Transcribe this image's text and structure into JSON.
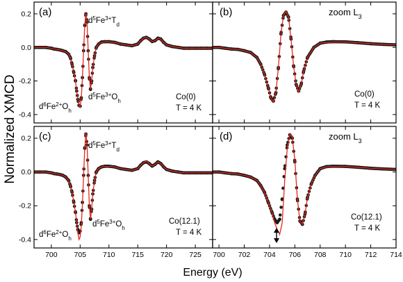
{
  "figure": {
    "ylabel": "Normalized XMCD",
    "xlabel": "Energy (eV)"
  },
  "chart_data": [
    {
      "id": "a",
      "type": "line",
      "panel_label": "(a)",
      "xlim": [
        697,
        728
      ],
      "ylim": [
        -0.45,
        0.27
      ],
      "x_ticks": [
        700,
        705,
        710,
        715,
        720,
        725
      ],
      "y_ticks": [
        -0.4,
        -0.2,
        0.0,
        0.2
      ],
      "y_tick_labels": [
        "-0.4",
        "-0.2",
        "0.0",
        "0.2"
      ],
      "series": [
        {
          "role": "measured",
          "color": "#1a1a1a",
          "x": [
            697,
            698,
            699,
            700,
            700.5,
            701,
            701.5,
            702,
            702.5,
            703,
            703.3,
            703.6,
            703.9,
            704.2,
            704.4,
            704.6,
            704.8,
            705.0,
            705.2,
            705.4,
            705.6,
            705.8,
            706.0,
            706.2,
            706.4,
            706.6,
            706.8,
            707.0,
            707.2,
            707.5,
            707.8,
            708.2,
            708.7,
            709.3,
            710,
            711,
            712,
            713,
            714,
            715,
            715.5,
            716,
            716.5,
            717,
            717.5,
            718,
            718.5,
            719,
            719.5,
            720,
            720.5,
            721,
            722,
            723,
            724,
            725,
            726,
            727,
            728
          ],
          "values": [
            0.0,
            0.0,
            0.0,
            -0.005,
            -0.01,
            -0.012,
            -0.015,
            -0.02,
            -0.025,
            -0.04,
            -0.06,
            -0.1,
            -0.15,
            -0.2,
            -0.26,
            -0.31,
            -0.345,
            -0.35,
            -0.3,
            -0.18,
            -0.02,
            0.13,
            0.2,
            0.15,
            -0.02,
            -0.18,
            -0.25,
            -0.2,
            -0.12,
            -0.05,
            0.0,
            0.02,
            0.032,
            0.034,
            0.034,
            0.03,
            0.02,
            0.015,
            0.01,
            0.02,
            0.04,
            0.055,
            0.06,
            0.05,
            0.035,
            0.04,
            0.055,
            0.05,
            0.03,
            0.015,
            0.01,
            0.005,
            0.0,
            -0.005,
            -0.005,
            -0.005,
            -0.005,
            -0.005,
            -0.005
          ]
        },
        {
          "role": "fit",
          "color": "#e3281c",
          "x": [
            697,
            698,
            699,
            700,
            700.5,
            701,
            701.5,
            702,
            702.5,
            703,
            703.3,
            703.6,
            703.9,
            704.2,
            704.4,
            704.6,
            704.8,
            705.0,
            705.2,
            705.4,
            705.6,
            705.8,
            706.0,
            706.2,
            706.4,
            706.6,
            706.8,
            707.0,
            707.2,
            707.5,
            707.8,
            708.2,
            708.7,
            709.3,
            710,
            711,
            712,
            713,
            714,
            715,
            715.5,
            716,
            716.5,
            717,
            717.5,
            718,
            718.5,
            719,
            719.5,
            720,
            720.5,
            721,
            722,
            723,
            724,
            725,
            726,
            727,
            728
          ],
          "values": [
            0.0,
            0.0,
            0.0,
            -0.005,
            -0.01,
            -0.012,
            -0.015,
            -0.02,
            -0.025,
            -0.04,
            -0.06,
            -0.1,
            -0.15,
            -0.2,
            -0.26,
            -0.31,
            -0.345,
            -0.355,
            -0.3,
            -0.18,
            -0.02,
            0.13,
            0.205,
            0.15,
            -0.02,
            -0.18,
            -0.25,
            -0.2,
            -0.12,
            -0.05,
            0.0,
            0.02,
            0.03,
            0.033,
            0.033,
            0.03,
            0.02,
            0.015,
            0.01,
            0.02,
            0.04,
            0.055,
            0.06,
            0.05,
            0.035,
            0.04,
            0.055,
            0.05,
            0.03,
            0.015,
            0.01,
            0.005,
            0.0,
            -0.005,
            -0.005,
            -0.005,
            -0.005,
            -0.005,
            -0.005
          ]
        }
      ],
      "annotations": [
        "d⁵Fe³⁺T_d",
        "d⁵Fe³⁺O_h",
        "d⁶Fe²⁺O_h",
        "Co(0)",
        "T = 4 K"
      ]
    },
    {
      "id": "b",
      "type": "line",
      "panel_label": "(b)",
      "title": "zoom L₃",
      "xlim": [
        699.5,
        714
      ],
      "ylim": [
        -0.45,
        0.27
      ],
      "x_ticks": [
        700,
        702,
        704,
        706,
        708,
        710,
        712,
        714
      ],
      "series": [
        {
          "role": "measured",
          "color": "#1a1a1a",
          "x": [
            699.5,
            700,
            700.5,
            701,
            701.5,
            702,
            702.5,
            703,
            703.3,
            703.6,
            703.9,
            704.1,
            704.3,
            704.5,
            704.7,
            704.9,
            705.1,
            705.3,
            705.5,
            705.7,
            705.9,
            706.1,
            706.3,
            706.5,
            706.7,
            707,
            707.5,
            708,
            708.5,
            709,
            710,
            711,
            712,
            713,
            714
          ],
          "values": [
            0.0,
            0.0,
            -0.005,
            -0.01,
            -0.012,
            -0.02,
            -0.03,
            -0.06,
            -0.1,
            -0.16,
            -0.24,
            -0.3,
            -0.32,
            -0.27,
            -0.12,
            0.08,
            0.19,
            0.21,
            0.18,
            0.05,
            -0.11,
            -0.22,
            -0.26,
            -0.22,
            -0.14,
            -0.06,
            0.0,
            0.025,
            0.032,
            0.034,
            0.033,
            0.028,
            0.022,
            0.018,
            0.015
          ]
        },
        {
          "role": "fit",
          "color": "#e3281c",
          "x": [
            699.5,
            700,
            700.5,
            701,
            701.5,
            702,
            702.5,
            703,
            703.3,
            703.6,
            703.9,
            704.1,
            704.3,
            704.5,
            704.7,
            704.9,
            705.1,
            705.3,
            705.5,
            705.7,
            705.9,
            706.1,
            706.3,
            706.5,
            706.7,
            707,
            707.5,
            708,
            708.5,
            709,
            710,
            711,
            712,
            713,
            714
          ],
          "values": [
            0.0,
            0.0,
            -0.005,
            -0.01,
            -0.012,
            -0.02,
            -0.03,
            -0.06,
            -0.1,
            -0.16,
            -0.24,
            -0.3,
            -0.325,
            -0.27,
            -0.12,
            0.08,
            0.19,
            0.215,
            0.18,
            0.05,
            -0.11,
            -0.22,
            -0.265,
            -0.22,
            -0.14,
            -0.06,
            0.0,
            0.025,
            0.03,
            0.032,
            0.032,
            0.028,
            0.022,
            0.018,
            0.015
          ]
        }
      ],
      "annotations": [
        "Co(0)",
        "T = 4 K"
      ]
    },
    {
      "id": "c",
      "type": "line",
      "panel_label": "(c)",
      "xlim": [
        697,
        728
      ],
      "ylim": [
        -0.45,
        0.27
      ],
      "x_ticks": [
        700,
        705,
        710,
        715,
        720,
        725
      ],
      "x_tick_labels": [
        "700",
        "705",
        "710",
        "715",
        "720",
        "725"
      ],
      "y_ticks": [
        -0.4,
        -0.2,
        0.0,
        0.2
      ],
      "y_tick_labels": [
        "-0.4",
        "-0.2",
        "0.0",
        "0.2"
      ],
      "series": [
        {
          "role": "measured",
          "color": "#1a1a1a",
          "x": [
            697,
            698,
            699,
            700,
            700.5,
            701,
            701.5,
            702,
            702.5,
            703,
            703.3,
            703.6,
            703.9,
            704.2,
            704.4,
            704.6,
            704.8,
            705.0,
            705.2,
            705.4,
            705.6,
            705.8,
            706.0,
            706.2,
            706.4,
            706.6,
            706.8,
            707.0,
            707.2,
            707.5,
            707.8,
            708.2,
            708.7,
            709.3,
            710,
            711,
            712,
            713,
            714,
            715,
            715.5,
            716,
            716.5,
            717,
            717.5,
            718,
            718.5,
            719,
            719.5,
            720,
            720.5,
            721,
            722,
            723,
            724,
            725,
            726,
            727,
            728
          ],
          "values": [
            0.0,
            0.0,
            0.0,
            -0.005,
            -0.01,
            -0.012,
            -0.015,
            -0.02,
            -0.03,
            -0.05,
            -0.08,
            -0.12,
            -0.18,
            -0.24,
            -0.3,
            -0.34,
            -0.36,
            -0.35,
            -0.3,
            -0.18,
            -0.02,
            0.14,
            0.225,
            0.16,
            -0.02,
            -0.2,
            -0.28,
            -0.22,
            -0.13,
            -0.05,
            0.0,
            0.02,
            0.03,
            0.034,
            0.034,
            0.03,
            0.02,
            0.015,
            0.01,
            0.02,
            0.04,
            0.055,
            0.06,
            0.05,
            0.035,
            0.045,
            0.06,
            0.05,
            0.03,
            0.015,
            0.01,
            0.005,
            0.0,
            -0.005,
            -0.005,
            -0.005,
            -0.005,
            -0.005,
            -0.005
          ]
        },
        {
          "role": "fit",
          "color": "#e3281c",
          "x": [
            697,
            698,
            699,
            700,
            700.5,
            701,
            701.5,
            702,
            702.5,
            703,
            703.3,
            703.6,
            703.9,
            704.2,
            704.4,
            704.6,
            704.8,
            705.0,
            705.2,
            705.4,
            705.6,
            705.8,
            706.0,
            706.2,
            706.4,
            706.6,
            706.8,
            707.0,
            707.2,
            707.5,
            707.8,
            708.2,
            708.7,
            709.3,
            710,
            711,
            712,
            713,
            714,
            715,
            715.5,
            716,
            716.5,
            717,
            717.5,
            718,
            718.5,
            719,
            719.5,
            720,
            720.5,
            721,
            722,
            723,
            724,
            725,
            726,
            727,
            728
          ],
          "values": [
            0.0,
            0.0,
            0.0,
            -0.005,
            -0.01,
            -0.012,
            -0.015,
            -0.02,
            -0.03,
            -0.05,
            -0.08,
            -0.12,
            -0.18,
            -0.24,
            -0.3,
            -0.36,
            -0.4,
            -0.385,
            -0.32,
            -0.19,
            -0.02,
            0.14,
            0.235,
            0.165,
            -0.02,
            -0.2,
            -0.28,
            -0.22,
            -0.13,
            -0.05,
            0.0,
            0.02,
            0.03,
            0.033,
            0.033,
            0.03,
            0.02,
            0.015,
            0.01,
            0.02,
            0.04,
            0.055,
            0.065,
            0.05,
            0.035,
            0.045,
            0.06,
            0.05,
            0.03,
            0.015,
            0.01,
            0.005,
            0.0,
            -0.005,
            -0.005,
            -0.005,
            -0.005,
            -0.005,
            -0.005
          ]
        }
      ],
      "annotations": [
        "d⁵Fe³⁺T_d",
        "d⁵Fe³⁺O_h",
        "d⁶Fe²⁺O_h",
        "Co(12.1)",
        "T = 4 K"
      ]
    },
    {
      "id": "d",
      "type": "line",
      "panel_label": "(d)",
      "title": "zoom L₃",
      "xlim": [
        699.5,
        714
      ],
      "ylim": [
        -0.45,
        0.27
      ],
      "x_ticks": [
        700,
        702,
        704,
        706,
        708,
        710,
        712,
        714
      ],
      "x_tick_labels": [
        "700",
        "702",
        "704",
        "706",
        "708",
        "710",
        "712",
        "714"
      ],
      "series": [
        {
          "role": "measured",
          "color": "#1a1a1a",
          "x": [
            699.5,
            700,
            700.5,
            701,
            701.5,
            702,
            702.5,
            703,
            703.3,
            703.6,
            703.9,
            704.2,
            704.4,
            704.6,
            704.8,
            705.0,
            705.2,
            705.4,
            705.6,
            705.8,
            706.0,
            706.2,
            706.4,
            706.6,
            706.8,
            707.0,
            707.3,
            707.6,
            708,
            708.5,
            709,
            710,
            711,
            712,
            713,
            714
          ],
          "values": [
            0.0,
            0.0,
            -0.005,
            -0.01,
            -0.012,
            -0.02,
            -0.03,
            -0.05,
            -0.08,
            -0.12,
            -0.18,
            -0.24,
            -0.28,
            -0.3,
            -0.28,
            -0.16,
            0.02,
            0.16,
            0.22,
            0.2,
            0.06,
            -0.16,
            -0.29,
            -0.31,
            -0.25,
            -0.15,
            -0.07,
            -0.02,
            0.02,
            0.032,
            0.034,
            0.033,
            0.028,
            0.022,
            0.018,
            0.015
          ]
        },
        {
          "role": "fit",
          "color": "#e3281c",
          "x": [
            699.5,
            700,
            700.5,
            701,
            701.5,
            702,
            702.5,
            703,
            703.3,
            703.6,
            703.9,
            704.2,
            704.4,
            704.6,
            704.8,
            705.0,
            705.2,
            705.4,
            705.6,
            705.8,
            706.0,
            706.2,
            706.4,
            706.6,
            706.8,
            707.0,
            707.3,
            707.6,
            708,
            708.5,
            709,
            710,
            711,
            712,
            713,
            714
          ],
          "values": [
            0.0,
            0.0,
            -0.005,
            -0.01,
            -0.012,
            -0.02,
            -0.03,
            -0.05,
            -0.08,
            -0.12,
            -0.18,
            -0.24,
            -0.3,
            -0.34,
            -0.37,
            -0.3,
            -0.05,
            0.14,
            0.225,
            0.205,
            0.07,
            -0.16,
            -0.29,
            -0.31,
            -0.25,
            -0.15,
            -0.07,
            -0.02,
            0.02,
            0.03,
            0.032,
            0.032,
            0.028,
            0.022,
            0.018,
            0.015
          ]
        }
      ],
      "annotations": [
        "Co(12.1)",
        "T = 4 K"
      ]
    }
  ]
}
